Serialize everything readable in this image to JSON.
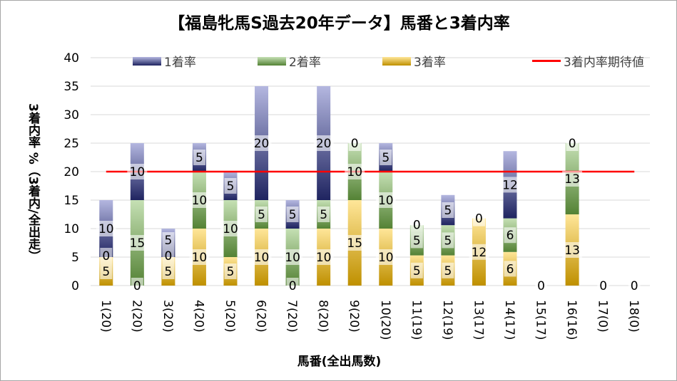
{
  "chart_data": {
    "type": "bar",
    "stacked": true,
    "title": "【福島牝馬S過去20年データ】馬番と3着内率",
    "xlabel": "馬番(全出馬数)",
    "ylabel": "3着内率 %（3着内/全出走）",
    "ylim": [
      0,
      40
    ],
    "yticks": [
      0,
      5,
      10,
      15,
      20,
      25,
      30,
      35,
      40
    ],
    "grid": true,
    "legend_position": "top",
    "categories": [
      "1(20)",
      "2(20)",
      "3(20)",
      "4(20)",
      "5(20)",
      "6(20)",
      "7(20)",
      "8(20)",
      "9(20)",
      "10(20)",
      "11(19)",
      "12(19)",
      "13(17)",
      "14(17)",
      "15(17)",
      "16(16)",
      "17(0)",
      "18(0)"
    ],
    "series": [
      {
        "name": "3着率",
        "colors": [
          "#ffe699",
          "#bf9000"
        ],
        "values": [
          5,
          0,
          5,
          10,
          5,
          10,
          0,
          10,
          15,
          10,
          5.3,
          5.3,
          11.8,
          5.9,
          0,
          12.5,
          0,
          0
        ]
      },
      {
        "name": "2着率",
        "colors": [
          "#c5e0b4",
          "#548235"
        ],
        "values": [
          0,
          15,
          0,
          10,
          10,
          5,
          10,
          5,
          10,
          10,
          5.3,
          5.3,
          0,
          5.9,
          0,
          12.5,
          0,
          0
        ]
      },
      {
        "name": "1着率",
        "colors": [
          "#b4b7e0",
          "#1f2460"
        ],
        "values": [
          10,
          10,
          5,
          5,
          5,
          20,
          5,
          20,
          0,
          5,
          0,
          5.3,
          0,
          11.8,
          0,
          0,
          0,
          0
        ]
      }
    ],
    "reference_line": {
      "name": "3着内率期待値",
      "value": 20,
      "color": "#ff0000"
    }
  }
}
